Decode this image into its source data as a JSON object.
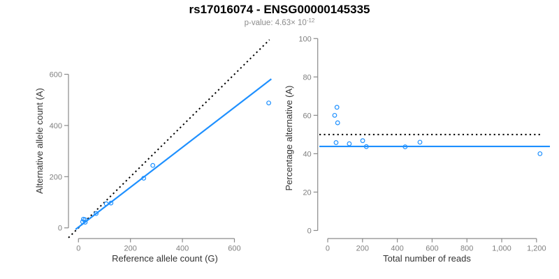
{
  "header": {
    "title": "rs17016074 - ENSG00000145335",
    "subtitle_text": "p-value: 4.63× 10",
    "subtitle_exponent": "-12"
  },
  "colors": {
    "series_blue": "#1E90FF",
    "reference_black": "#000000",
    "axis_gray": "#8a8a8a",
    "tick_label_gray": "#7f7f7f",
    "axis_title_color": "#333333",
    "subtitle_gray": "#8c8c8c"
  },
  "chart_data": [
    {
      "type": "scatter",
      "panel": "allele-counts",
      "xlabel": "Reference allele count (G)",
      "ylabel": "Alternative allele count (A)",
      "xlim": [
        -38.4,
        754.6
      ],
      "ylim": [
        -41.7,
        734.9
      ],
      "xtick_values": [
        0,
        200,
        400,
        600
      ],
      "xtick_labels": [
        "0",
        "200",
        "400",
        "600"
      ],
      "ytick_values": [
        0,
        200,
        400,
        600
      ],
      "ytick_labels": [
        "0",
        "200",
        "400",
        "600"
      ],
      "grid": false,
      "points": [
        [
          19,
          34
        ],
        [
          16,
          24
        ],
        [
          25,
          32
        ],
        [
          26,
          22
        ],
        [
          68,
          56
        ],
        [
          107,
          94
        ],
        [
          125,
          97
        ],
        [
          251,
          194
        ],
        [
          286,
          244
        ],
        [
          732,
          488
        ]
      ],
      "lines": [
        {
          "name": "identity-line",
          "desc": "y = x",
          "x1": -38.4,
          "y1": -38.4,
          "x2": 734.9,
          "y2": 734.9,
          "color": "#000000",
          "dashed": true,
          "width": 2
        },
        {
          "name": "fit-line",
          "desc": "y = 2.6 + 0.78x",
          "x1": -11,
          "y1": -6,
          "x2": 742,
          "y2": 581.5,
          "color": "#1E90FF",
          "dashed": false,
          "width": 2.2
        }
      ]
    },
    {
      "type": "scatter",
      "panel": "percentage-vs-coverage",
      "xlabel": "Total number of reads",
      "ylabel": "Percentage alternative (A)",
      "xlim": [
        -57.4,
        1289
      ],
      "ylim": [
        -4.2,
        100.1
      ],
      "xtick_values": [
        0,
        200,
        400,
        600,
        800,
        1000,
        1200
      ],
      "xtick_labels": [
        "0",
        "200",
        "400",
        "600",
        "800",
        "1,000",
        "1,200"
      ],
      "ytick_values": [
        0,
        20,
        40,
        60,
        80,
        100
      ],
      "ytick_labels": [
        "0",
        "20",
        "40",
        "60",
        "80",
        "100"
      ],
      "grid": false,
      "points": [
        [
          53,
          64.2
        ],
        [
          40,
          60.0
        ],
        [
          57,
          56.1
        ],
        [
          48,
          45.8
        ],
        [
          124,
          45.2
        ],
        [
          201,
          46.8
        ],
        [
          222,
          43.7
        ],
        [
          445,
          43.6
        ],
        [
          530,
          46.0
        ],
        [
          1220,
          40.0
        ]
      ],
      "lines": [
        {
          "name": "reference-line",
          "desc": "y = 50",
          "x1": -48,
          "y1": 50,
          "x2": 1237,
          "y2": 50,
          "color": "#000000",
          "dashed": true,
          "width": 2
        },
        {
          "name": "fit-line",
          "desc": "y = 43.8",
          "x1": -48,
          "y1": 43.8,
          "x2": 1277,
          "y2": 43.8,
          "color": "#1E90FF",
          "dashed": false,
          "width": 2.2
        }
      ]
    }
  ]
}
